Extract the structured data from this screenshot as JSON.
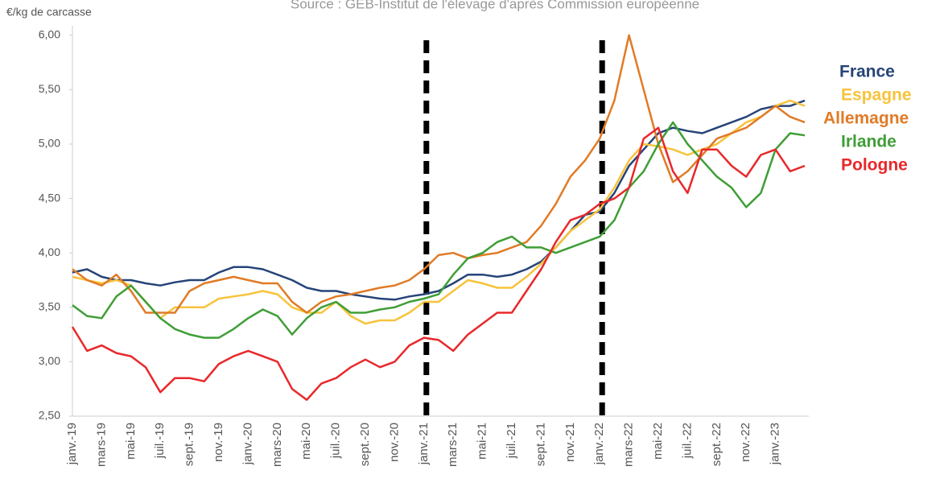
{
  "chart_data": {
    "type": "line",
    "title": "Source : GEB-Institut de l'élevage d'après Commission européenne",
    "y_label": "€/kg de carcasse",
    "categories": [
      "janv.-19",
      null,
      "mars-19",
      null,
      "mai-19",
      null,
      "juil.-19",
      null,
      "sept.-19",
      null,
      "nov.-19",
      null,
      "janv.-20",
      null,
      "mars-20",
      null,
      "mai-20",
      null,
      "juil.-20",
      null,
      "sept.-20",
      null,
      "nov.-20",
      null,
      "janv.-21",
      null,
      "mars-21",
      null,
      "mai-21",
      null,
      "juil.-21",
      null,
      "sept.-21",
      null,
      "nov.-21",
      null,
      "janv.-22",
      null,
      "mars-22",
      null,
      "mai-22",
      null,
      "juil.-22",
      null,
      "sept.-22",
      null,
      "nov.-22",
      null,
      "janv.-23",
      null,
      null
    ],
    "series": [
      {
        "name": "France",
        "color": "#264478",
        "values": [
          3.82,
          3.85,
          3.78,
          3.75,
          3.75,
          3.72,
          3.7,
          3.73,
          3.75,
          3.75,
          3.82,
          3.87,
          3.87,
          3.85,
          3.8,
          3.75,
          3.68,
          3.65,
          3.65,
          3.62,
          3.6,
          3.58,
          3.57,
          3.6,
          3.62,
          3.65,
          3.72,
          3.8,
          3.8,
          3.78,
          3.8,
          3.85,
          3.92,
          4.05,
          4.2,
          4.35,
          4.38,
          4.55,
          4.8,
          4.95,
          5.1,
          5.15,
          5.12,
          5.1,
          5.15,
          5.2,
          5.25,
          5.32,
          5.35,
          5.35,
          5.4
        ]
      },
      {
        "name": "Espagne",
        "color": "#f7c33c",
        "values": [
          3.78,
          3.75,
          3.72,
          3.75,
          3.7,
          3.55,
          3.4,
          3.5,
          3.5,
          3.5,
          3.58,
          3.6,
          3.62,
          3.65,
          3.62,
          3.5,
          3.45,
          3.45,
          3.55,
          3.42,
          3.35,
          3.38,
          3.38,
          3.45,
          3.55,
          3.55,
          3.65,
          3.75,
          3.72,
          3.68,
          3.68,
          3.78,
          3.9,
          4.05,
          4.2,
          4.3,
          4.4,
          4.6,
          4.85,
          5.0,
          4.98,
          4.95,
          4.9,
          4.95,
          5.0,
          5.1,
          5.2,
          5.25,
          5.35,
          5.4,
          5.35
        ]
      },
      {
        "name": "Allemagne",
        "color": "#e07b26",
        "values": [
          3.85,
          3.75,
          3.7,
          3.8,
          3.65,
          3.45,
          3.45,
          3.45,
          3.65,
          3.72,
          3.75,
          3.78,
          3.75,
          3.72,
          3.72,
          3.55,
          3.45,
          3.55,
          3.6,
          3.62,
          3.65,
          3.68,
          3.7,
          3.75,
          3.85,
          3.98,
          4.0,
          3.95,
          3.98,
          4.0,
          4.05,
          4.1,
          4.25,
          4.45,
          4.7,
          4.85,
          5.05,
          5.4,
          6.0,
          5.5,
          5.0,
          4.65,
          4.75,
          4.9,
          5.05,
          5.1,
          5.15,
          5.25,
          5.35,
          5.25,
          5.2
        ]
      },
      {
        "name": "Irlande",
        "color": "#3f9e36",
        "values": [
          3.52,
          3.42,
          3.4,
          3.6,
          3.7,
          3.55,
          3.4,
          3.3,
          3.25,
          3.22,
          3.22,
          3.3,
          3.4,
          3.48,
          3.42,
          3.25,
          3.4,
          3.5,
          3.55,
          3.45,
          3.45,
          3.48,
          3.5,
          3.55,
          3.58,
          3.62,
          3.8,
          3.95,
          4.0,
          4.1,
          4.15,
          4.05,
          4.05,
          4.0,
          4.05,
          4.1,
          4.15,
          4.3,
          4.6,
          4.75,
          5.0,
          5.2,
          5.0,
          4.85,
          4.7,
          4.6,
          4.42,
          4.55,
          4.95,
          5.1,
          5.08
        ]
      },
      {
        "name": "Pologne",
        "color": "#e8282b",
        "values": [
          3.32,
          3.1,
          3.15,
          3.08,
          3.05,
          2.95,
          2.72,
          2.85,
          2.85,
          2.82,
          2.98,
          3.05,
          3.1,
          3.05,
          3.0,
          2.75,
          2.65,
          2.8,
          2.85,
          2.95,
          3.02,
          2.95,
          3.0,
          3.15,
          3.22,
          3.2,
          3.1,
          3.25,
          3.35,
          3.45,
          3.45,
          3.65,
          3.85,
          4.1,
          4.3,
          4.35,
          4.45,
          4.5,
          4.6,
          5.05,
          5.15,
          4.75,
          4.55,
          4.95,
          4.95,
          4.8,
          4.7,
          4.9,
          4.95,
          4.75,
          4.8
        ]
      }
    ],
    "ylim": [
      2.5,
      6.05
    ],
    "yticks": [
      {
        "value": 2.5,
        "label": "2,50"
      },
      {
        "value": 3.0,
        "label": "3,00"
      },
      {
        "value": 3.5,
        "label": "3,50"
      },
      {
        "value": 4.0,
        "label": "4,00"
      },
      {
        "value": 4.5,
        "label": "4,50"
      },
      {
        "value": 5.0,
        "label": "5,00"
      },
      {
        "value": 5.5,
        "label": "5,50"
      },
      {
        "value": 6.0,
        "label": "6,00"
      }
    ],
    "grid": false,
    "vlines": [
      24,
      36
    ]
  }
}
